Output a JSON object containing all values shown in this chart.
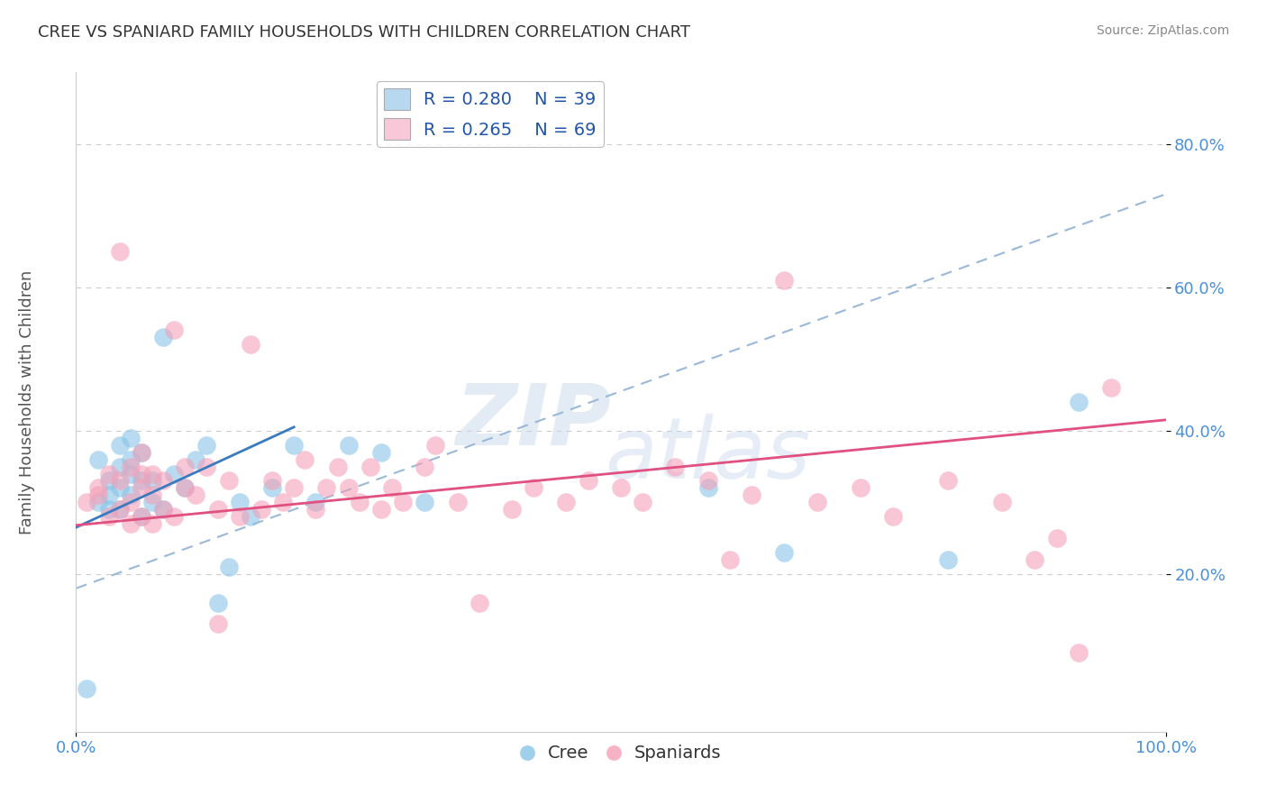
{
  "title": "CREE VS SPANIARD FAMILY HOUSEHOLDS WITH CHILDREN CORRELATION CHART",
  "source": "Source: ZipAtlas.com",
  "ylabel": "Family Households with Children",
  "xlabel_bottom_left": "0.0%",
  "xlabel_bottom_right": "100.0%",
  "cree_R": 0.28,
  "cree_N": 39,
  "spaniard_R": 0.265,
  "spaniard_N": 69,
  "cree_color": "#89c4e8",
  "spaniard_color": "#f4a0b8",
  "cree_line_color": "#3a7abf",
  "spaniard_line_color": "#e05080",
  "trendline_color": "#9ab8d8",
  "legend_box_cree_color": "#b8d8f0",
  "legend_box_spaniard_color": "#f8c8d8",
  "xlim": [
    0.0,
    1.0
  ],
  "ylim": [
    -0.02,
    0.9
  ],
  "yticks": [
    0.2,
    0.4,
    0.6,
    0.8
  ],
  "ytick_labels": [
    "20.0%",
    "40.0%",
    "60.0%",
    "80.0%"
  ],
  "background_color": "#ffffff",
  "cree_x": [
    0.01,
    0.02,
    0.02,
    0.03,
    0.03,
    0.03,
    0.04,
    0.04,
    0.04,
    0.04,
    0.05,
    0.05,
    0.05,
    0.05,
    0.06,
    0.06,
    0.06,
    0.07,
    0.07,
    0.08,
    0.08,
    0.09,
    0.1,
    0.11,
    0.12,
    0.13,
    0.14,
    0.15,
    0.16,
    0.18,
    0.2,
    0.22,
    0.25,
    0.28,
    0.32,
    0.58,
    0.65,
    0.8,
    0.92
  ],
  "cree_y": [
    0.04,
    0.3,
    0.36,
    0.29,
    0.31,
    0.33,
    0.29,
    0.32,
    0.35,
    0.38,
    0.31,
    0.34,
    0.36,
    0.39,
    0.28,
    0.33,
    0.37,
    0.3,
    0.33,
    0.29,
    0.53,
    0.34,
    0.32,
    0.36,
    0.38,
    0.16,
    0.21,
    0.3,
    0.28,
    0.32,
    0.38,
    0.3,
    0.38,
    0.37,
    0.3,
    0.32,
    0.23,
    0.22,
    0.44
  ],
  "spaniard_x": [
    0.01,
    0.02,
    0.02,
    0.03,
    0.03,
    0.04,
    0.04,
    0.04,
    0.05,
    0.05,
    0.05,
    0.06,
    0.06,
    0.06,
    0.06,
    0.07,
    0.07,
    0.07,
    0.08,
    0.08,
    0.09,
    0.09,
    0.1,
    0.1,
    0.11,
    0.12,
    0.13,
    0.13,
    0.14,
    0.15,
    0.16,
    0.17,
    0.18,
    0.19,
    0.2,
    0.21,
    0.22,
    0.23,
    0.24,
    0.25,
    0.26,
    0.27,
    0.28,
    0.29,
    0.3,
    0.32,
    0.33,
    0.35,
    0.37,
    0.4,
    0.42,
    0.45,
    0.47,
    0.5,
    0.52,
    0.55,
    0.58,
    0.6,
    0.62,
    0.65,
    0.68,
    0.72,
    0.75,
    0.8,
    0.85,
    0.88,
    0.9,
    0.92,
    0.95
  ],
  "spaniard_y": [
    0.3,
    0.31,
    0.32,
    0.28,
    0.34,
    0.29,
    0.33,
    0.65,
    0.27,
    0.3,
    0.35,
    0.28,
    0.32,
    0.34,
    0.37,
    0.27,
    0.31,
    0.34,
    0.29,
    0.33,
    0.54,
    0.28,
    0.32,
    0.35,
    0.31,
    0.35,
    0.13,
    0.29,
    0.33,
    0.28,
    0.52,
    0.29,
    0.33,
    0.3,
    0.32,
    0.36,
    0.29,
    0.32,
    0.35,
    0.32,
    0.3,
    0.35,
    0.29,
    0.32,
    0.3,
    0.35,
    0.38,
    0.3,
    0.16,
    0.29,
    0.32,
    0.3,
    0.33,
    0.32,
    0.3,
    0.35,
    0.33,
    0.22,
    0.31,
    0.61,
    0.3,
    0.32,
    0.28,
    0.33,
    0.3,
    0.22,
    0.25,
    0.09,
    0.46
  ],
  "cree_line_x0": 0.0,
  "cree_line_y0": 0.265,
  "cree_line_x1": 0.2,
  "cree_line_y1": 0.405,
  "spaniard_line_x0": 0.0,
  "spaniard_line_y0": 0.268,
  "spaniard_line_x1": 1.0,
  "spaniard_line_y1": 0.415,
  "dash_line_x0": 0.0,
  "dash_line_y0": 0.18,
  "dash_line_x1": 1.0,
  "dash_line_y1": 0.73
}
